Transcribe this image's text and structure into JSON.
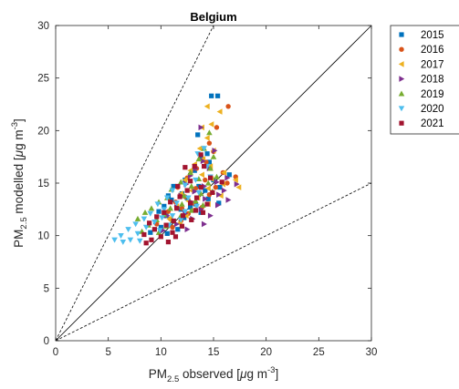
{
  "chart_data": {
    "type": "scatter",
    "title": "Belgium",
    "xlabel": {
      "pre": "PM",
      "sub": "2.5",
      "mid": " observed [",
      "mu": "μ",
      "rest": "g m",
      "sup": "-3",
      "end": "]"
    },
    "ylabel": {
      "pre": "PM",
      "sub": "2.5",
      "mid": " modelled [",
      "mu": "μ",
      "rest": "g m",
      "sup": "-3",
      "end": "]"
    },
    "xlim": [
      0,
      30
    ],
    "ylim": [
      0,
      30
    ],
    "xticks": [
      "0",
      "5",
      "10",
      "15",
      "20",
      "25",
      "30"
    ],
    "yticks": [
      "0",
      "5",
      "10",
      "15",
      "20",
      "25",
      "30"
    ],
    "grid": false,
    "legend_position": "outside-top-right",
    "reference_lines": [
      {
        "name": "1:1",
        "style": "solid",
        "points": [
          [
            0,
            0
          ],
          [
            30,
            30
          ]
        ]
      },
      {
        "name": "2:1",
        "style": "dashed",
        "points": [
          [
            0,
            0
          ],
          [
            15,
            30
          ]
        ]
      },
      {
        "name": "1:2",
        "style": "dashed",
        "points": [
          [
            0,
            0
          ],
          [
            30,
            15
          ]
        ]
      }
    ],
    "series": [
      {
        "name": "2015",
        "marker": "square",
        "color": "#0072BD",
        "points": [
          [
            14.8,
            23.3
          ],
          [
            15.4,
            23.3
          ],
          [
            13.5,
            19.6
          ],
          [
            14.4,
            17.8
          ],
          [
            13.8,
            17.5
          ],
          [
            14.6,
            17.0
          ],
          [
            13.2,
            16.2
          ],
          [
            16.5,
            15.8
          ],
          [
            12.3,
            15.3
          ],
          [
            15.0,
            15.3
          ],
          [
            11.2,
            14.7
          ],
          [
            13.6,
            14.7
          ],
          [
            15.6,
            14.6
          ],
          [
            12.0,
            14.0
          ],
          [
            14.2,
            14.3
          ],
          [
            10.7,
            13.8
          ],
          [
            12.5,
            13.6
          ],
          [
            14.5,
            13.5
          ],
          [
            11.0,
            13.4
          ],
          [
            13.3,
            13.0
          ],
          [
            15.5,
            13.1
          ],
          [
            10.3,
            12.8
          ],
          [
            12.8,
            12.7
          ],
          [
            9.8,
            12.3
          ],
          [
            11.9,
            12.5
          ],
          [
            13.8,
            12.2
          ],
          [
            10.5,
            11.9
          ],
          [
            12.2,
            11.7
          ],
          [
            9.5,
            11.3
          ],
          [
            11.2,
            11.4
          ],
          [
            10.0,
            10.8
          ],
          [
            11.6,
            10.6
          ],
          [
            9.0,
            10.3
          ],
          [
            10.6,
            10.2
          ]
        ]
      },
      {
        "name": "2016",
        "marker": "circle",
        "color": "#D95319",
        "points": [
          [
            16.4,
            22.3
          ],
          [
            15.3,
            20.3
          ],
          [
            14.6,
            18.8
          ],
          [
            15.0,
            18.0
          ],
          [
            14.3,
            17.0
          ],
          [
            13.4,
            16.4
          ],
          [
            15.9,
            16.0
          ],
          [
            17.1,
            15.6
          ],
          [
            12.5,
            15.5
          ],
          [
            14.2,
            15.3
          ],
          [
            16.3,
            15.0
          ],
          [
            11.6,
            14.6
          ],
          [
            13.3,
            14.5
          ],
          [
            15.2,
            14.6
          ],
          [
            12.3,
            13.7
          ],
          [
            14.6,
            13.9
          ],
          [
            11.4,
            13.2
          ],
          [
            13.1,
            13.1
          ],
          [
            12.0,
            12.6
          ],
          [
            13.9,
            12.7
          ],
          [
            10.7,
            12.3
          ],
          [
            12.6,
            12.1
          ],
          [
            10.9,
            11.6
          ],
          [
            11.9,
            11.4
          ],
          [
            9.6,
            11.1
          ],
          [
            11.1,
            10.8
          ]
        ]
      },
      {
        "name": "2017",
        "marker": "triangle-left",
        "color": "#EDB120",
        "points": [
          [
            14.4,
            22.3
          ],
          [
            15.6,
            21.8
          ],
          [
            13.9,
            20.3
          ],
          [
            14.8,
            20.6
          ],
          [
            14.4,
            19.3
          ],
          [
            13.7,
            18.3
          ],
          [
            15.0,
            18.1
          ],
          [
            14.0,
            17.3
          ],
          [
            13.2,
            16.8
          ],
          [
            14.7,
            16.6
          ],
          [
            12.8,
            16.2
          ],
          [
            16.0,
            16.0
          ],
          [
            13.9,
            15.8
          ],
          [
            17.1,
            15.3
          ],
          [
            12.3,
            15.3
          ],
          [
            14.8,
            15.4
          ],
          [
            15.9,
            14.9
          ],
          [
            17.4,
            14.6
          ],
          [
            12.9,
            14.3
          ],
          [
            14.5,
            14.5
          ],
          [
            11.9,
            14.0
          ],
          [
            13.5,
            13.6
          ],
          [
            15.7,
            13.8
          ],
          [
            12.6,
            13.3
          ],
          [
            14.5,
            13.0
          ],
          [
            11.5,
            12.8
          ],
          [
            13.2,
            12.5
          ],
          [
            12.4,
            11.9
          ],
          [
            10.8,
            11.6
          ],
          [
            11.8,
            11.2
          ]
        ]
      },
      {
        "name": "2018",
        "marker": "triangle-right",
        "color": "#7E2F8E",
        "points": [
          [
            13.8,
            20.3
          ],
          [
            15.1,
            18.1
          ],
          [
            14.0,
            17.1
          ],
          [
            13.3,
            16.4
          ],
          [
            14.6,
            16.4
          ],
          [
            16.3,
            15.5
          ],
          [
            12.8,
            15.7
          ],
          [
            15.3,
            15.1
          ],
          [
            17.2,
            14.9
          ],
          [
            12.4,
            14.9
          ],
          [
            14.1,
            14.7
          ],
          [
            16.0,
            14.3
          ],
          [
            13.2,
            14.2
          ],
          [
            15.5,
            13.9
          ],
          [
            11.9,
            13.8
          ],
          [
            14.2,
            13.5
          ],
          [
            16.4,
            13.4
          ],
          [
            12.9,
            13.2
          ],
          [
            15.4,
            12.9
          ],
          [
            11.5,
            12.7
          ],
          [
            13.8,
            12.5
          ],
          [
            12.3,
            12.1
          ],
          [
            14.7,
            11.9
          ],
          [
            10.6,
            11.9
          ],
          [
            13.0,
            11.6
          ],
          [
            11.5,
            11.1
          ],
          [
            14.1,
            11.1
          ],
          [
            12.5,
            10.6
          ],
          [
            10.2,
            10.5
          ]
        ]
      },
      {
        "name": "2019",
        "marker": "triangle-up",
        "color": "#77AC30",
        "points": [
          [
            14.6,
            19.8
          ],
          [
            14.1,
            18.3
          ],
          [
            15.0,
            17.5
          ],
          [
            13.6,
            17.3
          ],
          [
            14.7,
            16.4
          ],
          [
            12.8,
            16.0
          ],
          [
            15.3,
            15.6
          ],
          [
            13.6,
            15.4
          ],
          [
            11.9,
            15.1
          ],
          [
            14.5,
            15.0
          ],
          [
            12.9,
            14.7
          ],
          [
            11.0,
            14.4
          ],
          [
            13.8,
            14.0
          ],
          [
            14.9,
            14.2
          ],
          [
            12.2,
            13.8
          ],
          [
            10.6,
            13.6
          ],
          [
            13.3,
            13.3
          ],
          [
            9.8,
            13.2
          ],
          [
            12.0,
            13.0
          ],
          [
            14.0,
            12.9
          ],
          [
            9.1,
            12.6
          ],
          [
            10.9,
            12.6
          ],
          [
            12.9,
            12.4
          ],
          [
            8.5,
            12.2
          ],
          [
            10.3,
            12.0
          ],
          [
            11.9,
            11.9
          ],
          [
            7.8,
            11.6
          ],
          [
            9.6,
            11.5
          ],
          [
            11.1,
            11.4
          ],
          [
            8.8,
            11.0
          ],
          [
            10.5,
            10.9
          ],
          [
            8.2,
            10.4
          ],
          [
            9.8,
            10.3
          ]
        ]
      },
      {
        "name": "2020",
        "marker": "triangle-down",
        "color": "#4DBEEE",
        "points": [
          [
            14.1,
            18.3
          ],
          [
            13.5,
            17.8
          ],
          [
            14.4,
            16.6
          ],
          [
            13.3,
            15.3
          ],
          [
            14.7,
            15.6
          ],
          [
            12.3,
            14.8
          ],
          [
            11.1,
            14.3
          ],
          [
            13.6,
            14.1
          ],
          [
            10.6,
            13.6
          ],
          [
            12.6,
            13.6
          ],
          [
            9.7,
            13.0
          ],
          [
            11.5,
            13.1
          ],
          [
            13.4,
            12.8
          ],
          [
            10.3,
            12.5
          ],
          [
            12.3,
            12.3
          ],
          [
            9.0,
            12.1
          ],
          [
            11.1,
            11.9
          ],
          [
            8.4,
            11.6
          ],
          [
            10.1,
            11.7
          ],
          [
            11.9,
            11.5
          ],
          [
            7.6,
            11.1
          ],
          [
            9.4,
            11.3
          ],
          [
            10.8,
            11.0
          ],
          [
            6.9,
            10.6
          ],
          [
            8.6,
            10.8
          ],
          [
            9.9,
            10.5
          ],
          [
            6.2,
            10.0
          ],
          [
            7.8,
            10.2
          ],
          [
            5.6,
            9.6
          ],
          [
            7.1,
            9.6
          ],
          [
            6.4,
            9.4
          ],
          [
            8.0,
            9.5
          ]
        ]
      },
      {
        "name": "2021",
        "marker": "square",
        "color": "#A2142F",
        "points": [
          [
            13.8,
            17.7
          ],
          [
            13.2,
            16.6
          ],
          [
            14.1,
            16.6
          ],
          [
            12.3,
            16.5
          ],
          [
            14.7,
            15.5
          ],
          [
            12.8,
            15.2
          ],
          [
            15.8,
            15.1
          ],
          [
            11.6,
            14.7
          ],
          [
            13.8,
            14.6
          ],
          [
            12.5,
            14.3
          ],
          [
            14.9,
            14.1
          ],
          [
            11.8,
            13.7
          ],
          [
            13.4,
            13.6
          ],
          [
            10.9,
            13.2
          ],
          [
            12.8,
            13.1
          ],
          [
            14.4,
            13.0
          ],
          [
            11.5,
            12.6
          ],
          [
            13.3,
            12.4
          ],
          [
            10.3,
            12.2
          ],
          [
            12.1,
            11.9
          ],
          [
            9.6,
            11.8
          ],
          [
            11.2,
            11.4
          ],
          [
            12.9,
            11.5
          ],
          [
            8.9,
            11.2
          ],
          [
            10.5,
            11.0
          ],
          [
            12.0,
            10.9
          ],
          [
            9.4,
            10.6
          ],
          [
            11.1,
            10.3
          ],
          [
            8.4,
            10.1
          ],
          [
            10.0,
            9.9
          ],
          [
            9.1,
            9.6
          ],
          [
            10.7,
            9.4
          ],
          [
            8.6,
            9.3
          ],
          [
            11.4,
            9.9
          ],
          [
            14.0,
            12.2
          ]
        ]
      }
    ]
  }
}
